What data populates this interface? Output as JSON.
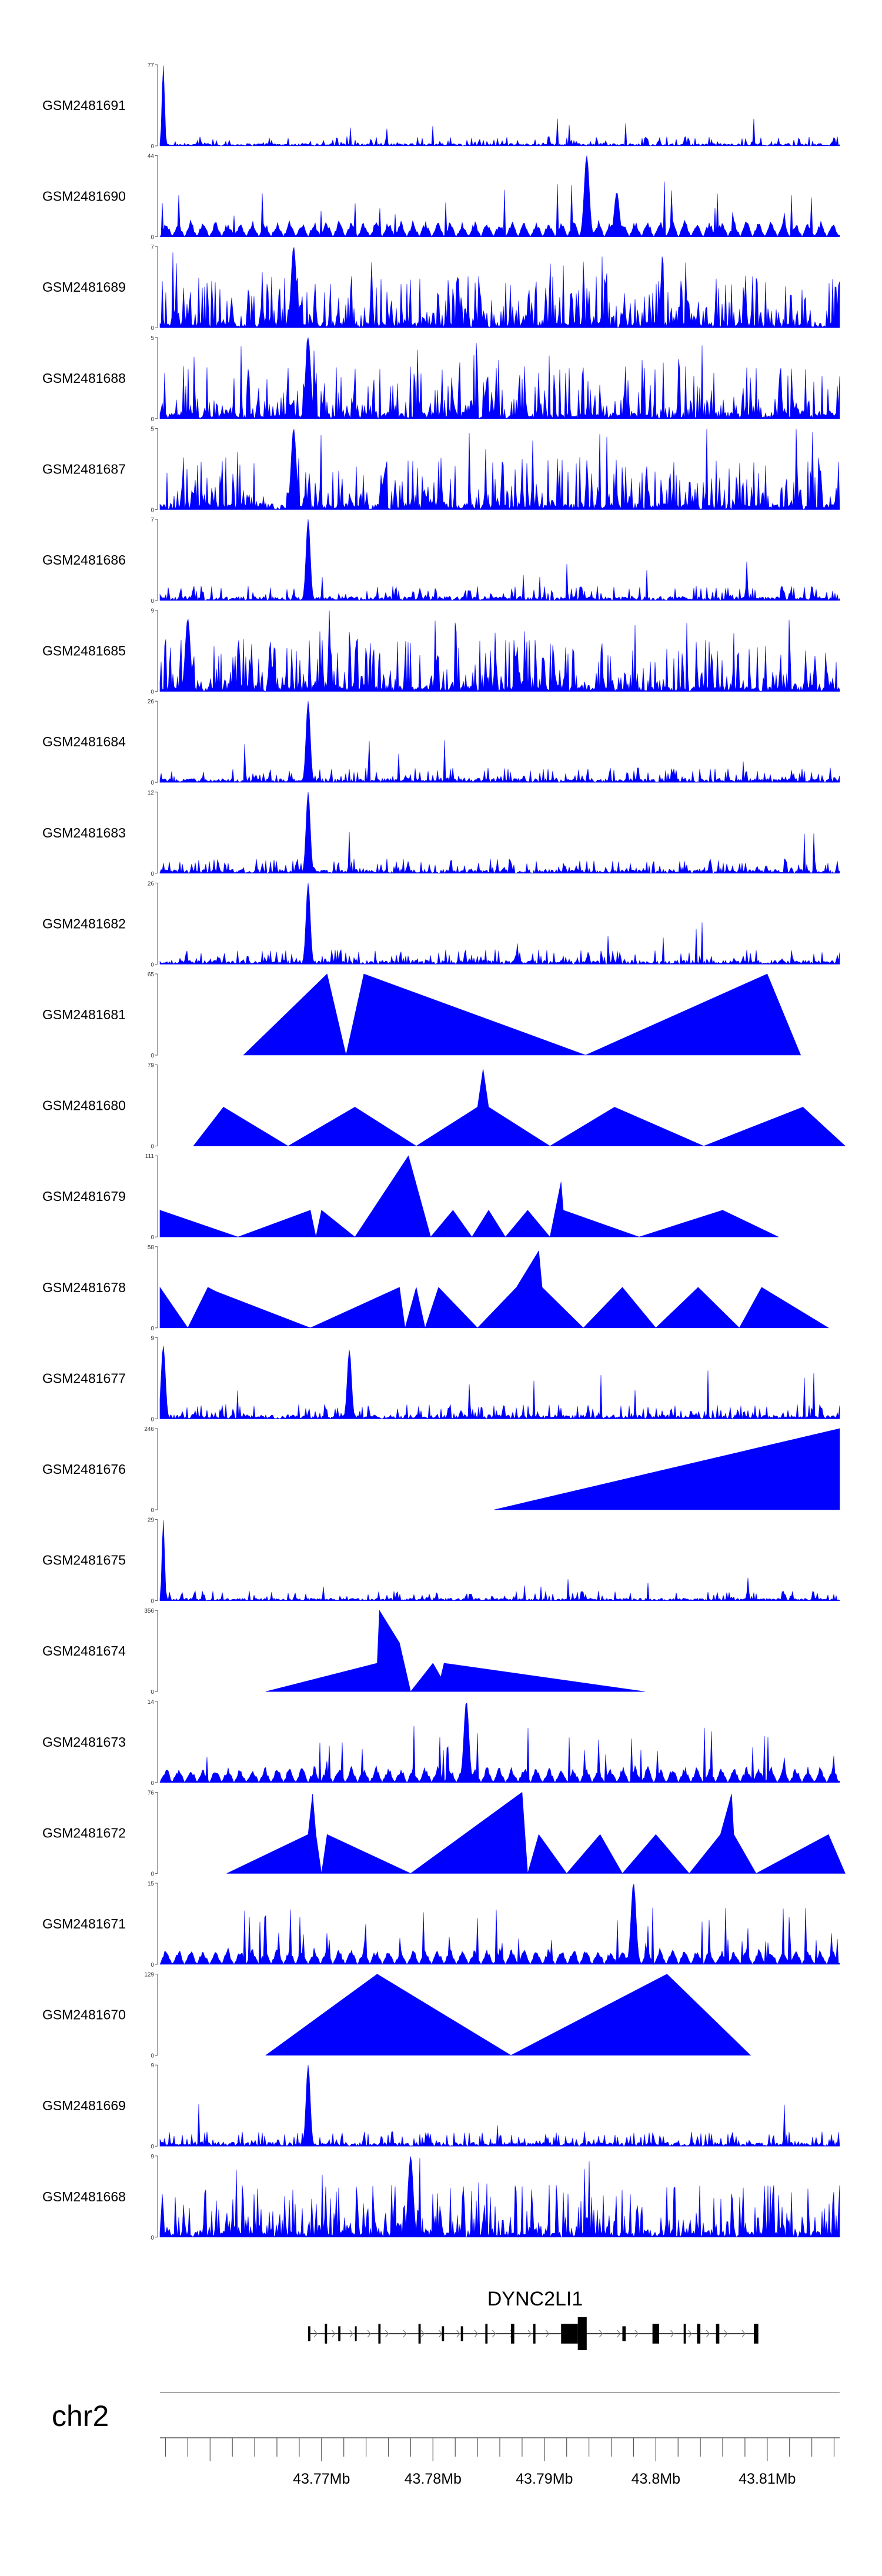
{
  "chart_data": {
    "type": "area",
    "title": "",
    "series_color": "#0000ff",
    "chromosome": "chr2",
    "xlim_mb": [
      43.7555,
      43.8165
    ],
    "tracks": [
      {
        "name": "GSM2481691",
        "ymax": "77",
        "ymin": "0",
        "pattern": "peak_left",
        "peaks": [
          [
            43.7558,
            1.0
          ]
        ]
      },
      {
        "name": "GSM2481690",
        "ymax": "44",
        "ymin": "0",
        "pattern": "triangles",
        "peaks": [
          [
            43.7938,
            1.0
          ],
          [
            43.7965,
            0.55
          ]
        ]
      },
      {
        "name": "GSM2481689",
        "ymax": "7",
        "ymin": "0",
        "pattern": "dense",
        "peaks": [
          [
            43.7675,
            1.0
          ]
        ]
      },
      {
        "name": "GSM2481688",
        "ymax": "5",
        "ymin": "0",
        "pattern": "dense",
        "peaks": [
          [
            43.7688,
            1.0
          ]
        ]
      },
      {
        "name": "GSM2481687",
        "ymax": "5",
        "ymin": "0",
        "pattern": "dense",
        "peaks": [
          [
            43.7675,
            1.0
          ]
        ]
      },
      {
        "name": "GSM2481686",
        "ymax": "7",
        "ymin": "0",
        "pattern": "sparse_peak",
        "peaks": [
          [
            43.7688,
            1.0
          ]
        ]
      },
      {
        "name": "GSM2481685",
        "ymax": "9",
        "ymin": "0",
        "pattern": "dense",
        "peaks": [
          [
            43.758,
            0.9
          ]
        ]
      },
      {
        "name": "GSM2481684",
        "ymax": "26",
        "ymin": "0",
        "pattern": "sparse_peak",
        "peaks": [
          [
            43.7688,
            1.0
          ]
        ]
      },
      {
        "name": "GSM2481683",
        "ymax": "12",
        "ymin": "0",
        "pattern": "sparse_peak",
        "peaks": [
          [
            43.7688,
            1.0
          ]
        ]
      },
      {
        "name": "GSM2481682",
        "ymax": "26",
        "ymin": "0",
        "pattern": "sparse_peak",
        "peaks": [
          [
            43.7688,
            1.0
          ]
        ]
      },
      {
        "name": "GSM2481681",
        "ymax": "65",
        "ymin": "0",
        "pattern": "polyline",
        "points": [
          [
            43.763,
            0
          ],
          [
            43.7705,
            1.0
          ],
          [
            43.7722,
            0
          ],
          [
            43.7738,
            1.0
          ],
          [
            43.7937,
            0
          ],
          [
            43.81,
            1.0
          ],
          [
            43.813,
            0
          ]
        ]
      },
      {
        "name": "GSM2481680",
        "ymax": "79",
        "ymin": "0",
        "pattern": "polyline",
        "points": [
          [
            43.7585,
            0
          ],
          [
            43.7612,
            0.48
          ],
          [
            43.767,
            0
          ],
          [
            43.773,
            0.48
          ],
          [
            43.7785,
            0
          ],
          [
            43.784,
            0.48
          ],
          [
            43.7845,
            0.95
          ],
          [
            43.785,
            0.48
          ],
          [
            43.7905,
            0
          ],
          [
            43.7963,
            0.48
          ],
          [
            43.8043,
            0
          ],
          [
            43.8132,
            0.48
          ],
          [
            43.817,
            0
          ]
        ]
      },
      {
        "name": "GSM2481679",
        "ymax": "111",
        "ymin": "0",
        "pattern": "polyline",
        "points": [
          [
            43.7555,
            0.33
          ],
          [
            43.7625,
            0
          ],
          [
            43.769,
            0.33
          ],
          [
            43.7695,
            0
          ],
          [
            43.77,
            0.33
          ],
          [
            43.773,
            0
          ],
          [
            43.7778,
            1.0
          ],
          [
            43.7798,
            0
          ],
          [
            43.7818,
            0.33
          ],
          [
            43.7835,
            0
          ],
          [
            43.785,
            0.33
          ],
          [
            43.7865,
            0
          ],
          [
            43.7885,
            0.33
          ],
          [
            43.7905,
            0
          ],
          [
            43.7915,
            0.68
          ],
          [
            43.7917,
            0.33
          ],
          [
            43.7985,
            0
          ],
          [
            43.806,
            0.33
          ],
          [
            43.811,
            0
          ]
        ]
      },
      {
        "name": "GSM2481678",
        "ymax": "58",
        "ymin": "0",
        "pattern": "polyline",
        "points": [
          [
            43.7555,
            0.5
          ],
          [
            43.758,
            0
          ],
          [
            43.7598,
            0.5
          ],
          [
            43.7605,
            0.45
          ],
          [
            43.769,
            0
          ],
          [
            43.777,
            0.5
          ],
          [
            43.7775,
            0
          ],
          [
            43.7785,
            0.5
          ],
          [
            43.7793,
            0
          ],
          [
            43.7805,
            0.5
          ],
          [
            43.784,
            0
          ],
          [
            43.7875,
            0.5
          ],
          [
            43.7895,
            0.95
          ],
          [
            43.7898,
            0.5
          ],
          [
            43.7935,
            0
          ],
          [
            43.797,
            0.5
          ],
          [
            43.8,
            0
          ],
          [
            43.8038,
            0.5
          ],
          [
            43.8075,
            0
          ],
          [
            43.8095,
            0.5
          ],
          [
            43.8155,
            0
          ]
        ]
      },
      {
        "name": "GSM2481677",
        "ymax": "9",
        "ymin": "0",
        "pattern": "sparse_peak",
        "peaks": [
          [
            43.7558,
            0.9
          ],
          [
            43.7725,
            0.85
          ]
        ]
      },
      {
        "name": "GSM2481676",
        "ymax": "246",
        "ymin": "0",
        "pattern": "polyline",
        "points": [
          [
            43.7855,
            0
          ],
          [
            43.8165,
            1.0
          ]
        ]
      },
      {
        "name": "GSM2481675",
        "ymax": "29",
        "ymin": "0",
        "pattern": "peak_left",
        "peaks": [
          [
            43.7558,
            1.0
          ]
        ]
      },
      {
        "name": "GSM2481674",
        "ymax": "356",
        "ymin": "0",
        "pattern": "polyline",
        "points": [
          [
            43.765,
            0
          ],
          [
            43.775,
            0.35
          ],
          [
            43.7752,
            1.0
          ],
          [
            43.777,
            0.6
          ],
          [
            43.778,
            0
          ],
          [
            43.78,
            0.35
          ],
          [
            43.7807,
            0.18
          ],
          [
            43.781,
            0.35
          ],
          [
            43.799,
            0
          ]
        ]
      },
      {
        "name": "GSM2481673",
        "ymax": "14",
        "ymin": "0",
        "pattern": "triangles",
        "peaks": [
          [
            43.783,
            1.0
          ]
        ]
      },
      {
        "name": "GSM2481672",
        "ymax": "76",
        "ymin": "0",
        "pattern": "polyline",
        "points": [
          [
            43.7615,
            0
          ],
          [
            43.7688,
            0.48
          ],
          [
            43.7692,
            0.98
          ],
          [
            43.7695,
            0.48
          ],
          [
            43.77,
            0
          ],
          [
            43.7705,
            0.48
          ],
          [
            43.778,
            0
          ],
          [
            43.788,
            1.0
          ],
          [
            43.7885,
            0
          ],
          [
            43.7895,
            0.48
          ],
          [
            43.792,
            0
          ],
          [
            43.795,
            0.48
          ],
          [
            43.797,
            0
          ],
          [
            43.8,
            0.48
          ],
          [
            43.803,
            0
          ],
          [
            43.8058,
            0.48
          ],
          [
            43.8068,
            0.98
          ],
          [
            43.807,
            0.48
          ],
          [
            43.809,
            0
          ],
          [
            43.8155,
            0.48
          ],
          [
            43.817,
            0
          ]
        ]
      },
      {
        "name": "GSM2481671",
        "ymax": "15",
        "ymin": "0",
        "pattern": "triangles",
        "peaks": [
          [
            43.798,
            1.0
          ]
        ]
      },
      {
        "name": "GSM2481670",
        "ymax": "129",
        "ymin": "0",
        "pattern": "polyline",
        "points": [
          [
            43.765,
            0
          ],
          [
            43.775,
            1.0
          ],
          [
            43.787,
            0
          ],
          [
            43.801,
            1.0
          ],
          [
            43.8085,
            0
          ]
        ]
      },
      {
        "name": "GSM2481669",
        "ymax": "9",
        "ymin": "0",
        "pattern": "sparse_peak",
        "peaks": [
          [
            43.7688,
            1.0
          ]
        ]
      },
      {
        "name": "GSM2481668",
        "ymax": "9",
        "ymin": "0",
        "pattern": "dense",
        "peaks": [
          [
            43.778,
            1.0
          ]
        ]
      }
    ],
    "gene": {
      "name": "DYNC2LI1",
      "start_mb": 43.7688,
      "end_mb": 43.8092,
      "strand": "+",
      "exons": [
        [
          43.7688,
          43.769
        ],
        [
          43.7703,
          43.7705
        ],
        [
          43.7715,
          43.7717
        ],
        [
          43.773,
          43.7731
        ],
        [
          43.7751,
          43.7753
        ],
        [
          43.7787,
          43.7789
        ],
        [
          43.7808,
          43.781
        ],
        [
          43.7825,
          43.7827
        ],
        [
          43.7847,
          43.7849
        ],
        [
          43.787,
          43.7873
        ],
        [
          43.789,
          43.7892
        ],
        [
          43.7915,
          43.793
        ],
        [
          43.793,
          43.7938
        ],
        [
          43.797,
          43.7973
        ],
        [
          43.7997,
          43.8003
        ],
        [
          43.8025,
          43.8027
        ],
        [
          43.8037,
          43.804
        ],
        [
          43.8054,
          43.8057
        ],
        [
          43.8088,
          43.8092
        ]
      ],
      "exon_heights": [
        0.45,
        0.6,
        0.45,
        0.45,
        0.6,
        0.6,
        0.45,
        0.45,
        0.6,
        0.6,
        0.6,
        0.6,
        1.0,
        0.45,
        0.6,
        0.6,
        0.6,
        0.6,
        0.6
      ]
    },
    "xticks": [
      "43.77Mb",
      "43.78Mb",
      "43.79Mb",
      "43.8Mb",
      "43.81Mb"
    ],
    "xtick_values_mb": [
      43.77,
      43.78,
      43.79,
      43.8,
      43.81
    ]
  }
}
